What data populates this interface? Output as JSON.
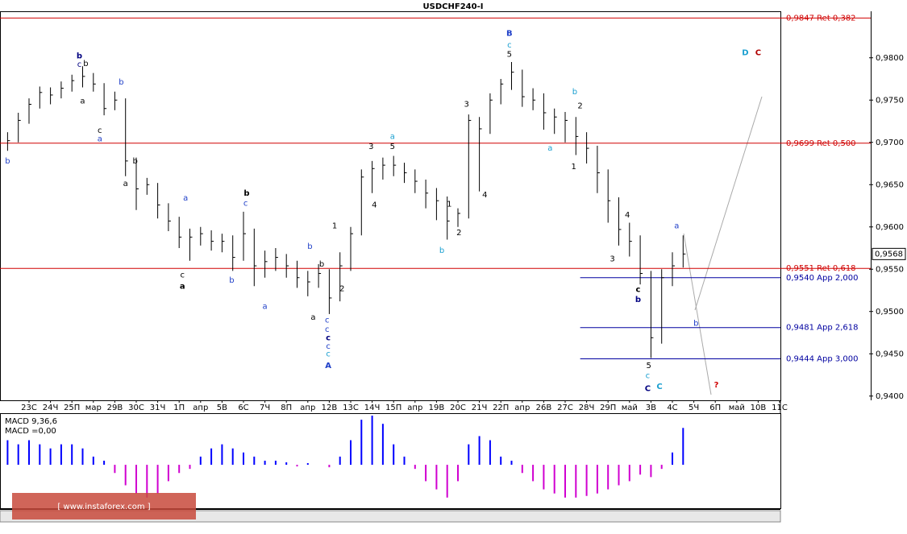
{
  "chart_data": {
    "type": "ohlc",
    "title": "USDCHF240-I",
    "categories": [
      null,
      null,
      "23С",
      null,
      "24Ч",
      null,
      "25П",
      null,
      "мар",
      null,
      "29В",
      null,
      "30С",
      null,
      "31Ч",
      null,
      "1П",
      null,
      "апр",
      null,
      "5В",
      null,
      "6С",
      null,
      "7Ч",
      null,
      "8П",
      null,
      "апр",
      null,
      "12В",
      null,
      "13С",
      null,
      "14Ч",
      null,
      "15П",
      null,
      "апр",
      null,
      "19В",
      null,
      "20С",
      null,
      "21Ч",
      null,
      "22П",
      null,
      "апр",
      null,
      "26В",
      null,
      "27С",
      null,
      "28Ч",
      null,
      "29П",
      null,
      "май",
      null,
      "3В",
      null,
      "4С",
      null,
      "5Ч",
      null,
      "6П",
      null,
      "май",
      null,
      "10В",
      null,
      "11С"
    ],
    "high": [
      0.9712,
      0.9735,
      0.9752,
      0.9766,
      0.9765,
      0.9772,
      0.978,
      0.979,
      0.9782,
      0.977,
      0.976,
      0.9752,
      0.9682,
      0.9658,
      0.9652,
      0.9628,
      0.9612,
      0.9598,
      0.96,
      0.9596,
      0.9592,
      0.959,
      0.9618,
      0.9598,
      0.9572,
      0.9575,
      0.9568,
      0.956,
      0.9548,
      0.9556,
      0.955,
      0.957,
      0.96,
      0.9668,
      0.9678,
      0.9682,
      0.9684,
      0.9676,
      0.9668,
      0.9656,
      0.9646,
      0.9636,
      0.9622,
      0.9733,
      0.973,
      0.9758,
      0.9775,
      0.9795,
      0.9786,
      0.9764,
      0.9758,
      0.974,
      0.9736,
      0.973,
      0.9712,
      0.9696,
      0.9668,
      0.9635,
      0.9605,
      0.959,
      0.9548,
      0.955,
      0.957,
      0.959,
      null,
      null,
      null,
      null,
      null,
      null,
      null,
      null,
      null
    ],
    "low": [
      0.969,
      0.97,
      0.9722,
      0.974,
      0.9745,
      0.9752,
      0.976,
      0.9765,
      0.976,
      0.9732,
      0.9738,
      0.966,
      0.962,
      0.9638,
      0.961,
      0.9595,
      0.9575,
      0.956,
      0.9578,
      0.9572,
      0.957,
      0.9548,
      0.956,
      0.953,
      0.954,
      0.9548,
      0.954,
      0.9528,
      0.9518,
      0.9528,
      0.9497,
      0.9512,
      0.9548,
      0.959,
      0.964,
      0.9656,
      0.966,
      0.9652,
      0.964,
      0.9622,
      0.9608,
      0.9585,
      0.96,
      0.961,
      0.9642,
      0.971,
      0.9745,
      0.9762,
      0.9742,
      0.9738,
      0.9715,
      0.971,
      0.97,
      0.9685,
      0.9675,
      0.964,
      0.9605,
      0.9578,
      0.9565,
      0.9532,
      0.9445,
      0.9462,
      0.953,
      0.9552,
      null,
      null,
      null,
      null,
      null,
      null,
      null,
      null,
      null
    ],
    "close": [
      0.9702,
      0.9726,
      0.9745,
      0.9759,
      0.9756,
      0.9764,
      0.9773,
      0.9778,
      0.9769,
      0.974,
      0.975,
      0.9678,
      0.9645,
      0.965,
      0.9626,
      0.9607,
      0.9588,
      0.9588,
      0.9592,
      0.9583,
      0.9583,
      0.9564,
      0.9592,
      0.9554,
      0.9559,
      0.9564,
      0.9554,
      0.954,
      0.9535,
      0.9545,
      0.9516,
      0.9554,
      0.9592,
      0.9659,
      0.9669,
      0.9673,
      0.9673,
      0.9664,
      0.9654,
      0.964,
      0.9631,
      0.9607,
      0.9616,
      0.9726,
      0.9716,
      0.975,
      0.9769,
      0.9783,
      0.9754,
      0.975,
      0.9735,
      0.973,
      0.9726,
      0.9707,
      0.9693,
      0.9664,
      0.9631,
      0.9597,
      0.9583,
      0.9545,
      0.9469,
      0.954,
      0.9554,
      0.9568,
      null,
      null,
      null,
      null,
      null,
      null,
      null,
      null,
      null
    ],
    "last": {
      "value": 0.9568,
      "label": "0,9568"
    },
    "ylim": [
      0.9395,
      0.9855
    ],
    "yticks": [
      {
        "value": 0.94,
        "label": "0,9400"
      },
      {
        "value": 0.945,
        "label": "0,9450"
      },
      {
        "value": 0.95,
        "label": "0,9500"
      },
      {
        "value": 0.955,
        "label": "0,9550"
      },
      {
        "value": 0.96,
        "label": "0,9600"
      },
      {
        "value": 0.965,
        "label": "0,9650"
      },
      {
        "value": 0.97,
        "label": "0,9700"
      },
      {
        "value": 0.975,
        "label": "0,9750"
      },
      {
        "value": 0.98,
        "label": "0,9800"
      }
    ],
    "levels": [
      {
        "value": 0.9847,
        "label": "0,9847 Ret 0,382",
        "color": "#d00000"
      },
      {
        "value": 0.9699,
        "label": "0,9699 Ret 0,500",
        "color": "#d00000"
      },
      {
        "value": 0.9551,
        "label": "0,9551 Ret 0,618",
        "color": "#d00000"
      },
      {
        "value": 0.954,
        "label": "0,9540 App 2,000",
        "color": "#0000a0",
        "from": 53.4
      },
      {
        "value": 0.9481,
        "label": "0,9481 App 2,618",
        "color": "#0000a0",
        "from": 53.4
      },
      {
        "value": 0.9444,
        "label": "0,9444 App 3,000",
        "color": "#0000a0",
        "from": 53.4
      }
    ],
    "annotations": [
      {
        "text": "b",
        "x": 0,
        "y": 0.9678,
        "color": "#1f3fc8"
      },
      {
        "text": "b",
        "x": 6.7,
        "y": 0.9802,
        "color": "#000080",
        "bold": true
      },
      {
        "text": "c",
        "x": 6.7,
        "y": 0.9792,
        "color": "#000080"
      },
      {
        "text": "b",
        "x": 7.3,
        "y": 0.9793,
        "color": "#000000"
      },
      {
        "text": "a",
        "x": 7.0,
        "y": 0.9749,
        "color": "#000000"
      },
      {
        "text": "b",
        "x": 10.6,
        "y": 0.9771,
        "color": "#1f3fc8"
      },
      {
        "text": "c",
        "x": 8.6,
        "y": 0.9714,
        "color": "#000000"
      },
      {
        "text": "a",
        "x": 8.6,
        "y": 0.9704,
        "color": "#1f3fc8"
      },
      {
        "text": "b",
        "x": 11.9,
        "y": 0.9678,
        "color": "#000000"
      },
      {
        "text": "a",
        "x": 11.0,
        "y": 0.9651,
        "color": "#000000"
      },
      {
        "text": "a",
        "x": 16.6,
        "y": 0.9634,
        "color": "#1f3fc8"
      },
      {
        "text": "c",
        "x": 16.3,
        "y": 0.9543,
        "color": "#000000"
      },
      {
        "text": "a",
        "x": 16.3,
        "y": 0.953,
        "color": "#000000",
        "bold": true
      },
      {
        "text": "b",
        "x": 22.3,
        "y": 0.964,
        "color": "#000000",
        "bold": true
      },
      {
        "text": "c",
        "x": 22.2,
        "y": 0.9628,
        "color": "#1f3fc8"
      },
      {
        "text": "b",
        "x": 20.9,
        "y": 0.9537,
        "color": "#1f3fc8"
      },
      {
        "text": "a",
        "x": 24.0,
        "y": 0.9506,
        "color": "#1f3fc8"
      },
      {
        "text": "b",
        "x": 28.2,
        "y": 0.9577,
        "color": "#1f3fc8"
      },
      {
        "text": "b",
        "x": 29.3,
        "y": 0.9556,
        "color": "#000000"
      },
      {
        "text": "a",
        "x": 28.5,
        "y": 0.9493,
        "color": "#000000"
      },
      {
        "text": "c",
        "x": 29.8,
        "y": 0.949,
        "color": "#1f3fc8"
      },
      {
        "text": "c",
        "x": 29.8,
        "y": 0.9479,
        "color": "#1f3fc8"
      },
      {
        "text": "c",
        "x": 29.9,
        "y": 0.9469,
        "color": "#000080",
        "bold": true
      },
      {
        "text": "c",
        "x": 29.9,
        "y": 0.9459,
        "color": "#1f3fc8"
      },
      {
        "text": "c",
        "x": 29.9,
        "y": 0.945,
        "color": "#1a9fd0"
      },
      {
        "text": "A",
        "x": 29.9,
        "y": 0.9436,
        "color": "#1f3fc8",
        "bold": true
      },
      {
        "text": "1",
        "x": 30.5,
        "y": 0.9601,
        "color": "#000000"
      },
      {
        "text": "2",
        "x": 31.2,
        "y": 0.9527,
        "color": "#000000"
      },
      {
        "text": "3",
        "x": 33.9,
        "y": 0.9695,
        "color": "#000000"
      },
      {
        "text": "4",
        "x": 34.2,
        "y": 0.9626,
        "color": "#000000"
      },
      {
        "text": "a",
        "x": 35.9,
        "y": 0.9707,
        "color": "#1a9fd0"
      },
      {
        "text": "5",
        "x": 35.9,
        "y": 0.9695,
        "color": "#000000"
      },
      {
        "text": "1",
        "x": 41.2,
        "y": 0.9627,
        "color": "#000000"
      },
      {
        "text": "2",
        "x": 42.1,
        "y": 0.9593,
        "color": "#000000"
      },
      {
        "text": "b",
        "x": 40.5,
        "y": 0.9572,
        "color": "#1a9fd0"
      },
      {
        "text": "3",
        "x": 42.8,
        "y": 0.9745,
        "color": "#000000"
      },
      {
        "text": "4",
        "x": 44.5,
        "y": 0.9638,
        "color": "#000000"
      },
      {
        "text": "B",
        "x": 46.8,
        "y": 0.9829,
        "color": "#1f3fc8",
        "bold": true
      },
      {
        "text": "c",
        "x": 46.8,
        "y": 0.9815,
        "color": "#1a9fd0"
      },
      {
        "text": "5",
        "x": 46.8,
        "y": 0.9804,
        "color": "#000000"
      },
      {
        "text": "b",
        "x": 52.9,
        "y": 0.976,
        "color": "#1a9fd0"
      },
      {
        "text": "2",
        "x": 53.4,
        "y": 0.9743,
        "color": "#000000"
      },
      {
        "text": "a",
        "x": 50.6,
        "y": 0.9693,
        "color": "#1a9fd0"
      },
      {
        "text": "1",
        "x": 52.8,
        "y": 0.9671,
        "color": "#000000"
      },
      {
        "text": "4",
        "x": 57.8,
        "y": 0.9614,
        "color": "#000000"
      },
      {
        "text": "3",
        "x": 56.4,
        "y": 0.9562,
        "color": "#000000"
      },
      {
        "text": "c",
        "x": 58.8,
        "y": 0.9526,
        "color": "#000000",
        "bold": true
      },
      {
        "text": "b",
        "x": 58.8,
        "y": 0.9514,
        "color": "#000080",
        "bold": true
      },
      {
        "text": "5",
        "x": 59.8,
        "y": 0.9436,
        "color": "#000000"
      },
      {
        "text": "c",
        "x": 59.7,
        "y": 0.9424,
        "color": "#1a9fd0"
      },
      {
        "text": "C",
        "x": 59.7,
        "y": 0.9409,
        "color": "#000080",
        "bold": true
      },
      {
        "text": "C",
        "x": 60.8,
        "y": 0.9411,
        "color": "#1a9fd0",
        "bold": true
      },
      {
        "text": "a",
        "x": 62.4,
        "y": 0.9601,
        "color": "#1f3fc8"
      },
      {
        "text": "b",
        "x": 64.2,
        "y": 0.9486,
        "color": "#1f3fc8"
      },
      {
        "text": "?",
        "x": 66.1,
        "y": 0.9413,
        "color": "#d00000",
        "bold": true
      },
      {
        "text": "D",
        "x": 68.8,
        "y": 0.9806,
        "color": "#1a9fd0",
        "bold": true
      },
      {
        "text": "C",
        "x": 70.0,
        "y": 0.9806,
        "color": "#b00000",
        "bold": true
      }
    ],
    "macd": {
      "label": "MACD 9,36,6",
      "value_label": "MACD =0,00",
      "ylim": [
        -53,
        62
      ],
      "pos_color": "#0000ff",
      "neg_color": "#d000d0",
      "values": [
        30,
        25,
        30,
        25,
        20,
        25,
        25,
        20,
        10,
        5,
        -10,
        -25,
        -35,
        -40,
        -35,
        -20,
        -10,
        -5,
        10,
        20,
        25,
        20,
        15,
        10,
        5,
        5,
        3,
        -2,
        2,
        0,
        -3,
        10,
        30,
        55,
        60,
        50,
        25,
        10,
        -5,
        -20,
        -30,
        -40,
        -20,
        25,
        35,
        30,
        10,
        5,
        -10,
        -20,
        -30,
        -35,
        -40,
        -40,
        -38,
        -35,
        -30,
        -25,
        -20,
        -12,
        -15,
        -5,
        15,
        45,
        null,
        null,
        null,
        null,
        null,
        null,
        null,
        null,
        null
      ]
    },
    "watermark": "[ www.instaforex.com ]"
  }
}
